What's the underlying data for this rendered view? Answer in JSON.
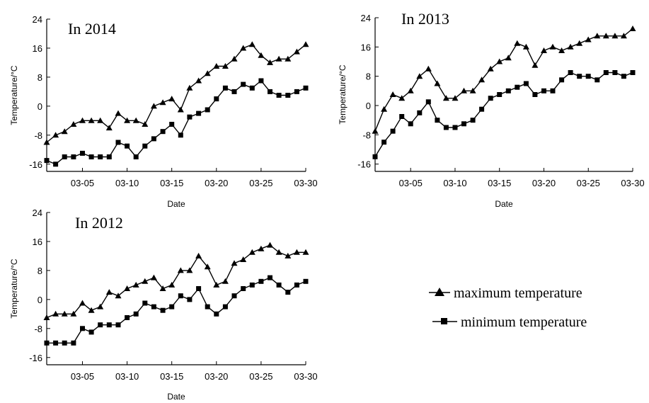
{
  "legend": {
    "max_label": "maximum temperature",
    "min_label": "minimum temperature"
  },
  "chart_data": [
    {
      "type": "line",
      "title": "In 2014",
      "xlabel": "Date",
      "ylabel": "Temperature/°C",
      "ylim": [
        -18,
        24
      ],
      "yticks": [
        -16,
        -8,
        0,
        8,
        16,
        24
      ],
      "xlim": [
        1,
        30
      ],
      "xticks": [
        5,
        10,
        15,
        20,
        25,
        30
      ],
      "xtick_labels": [
        "03-05",
        "03-10",
        "03-15",
        "03-20",
        "03-25",
        "03-30"
      ],
      "x": [
        1,
        2,
        3,
        4,
        5,
        6,
        7,
        8,
        9,
        10,
        11,
        12,
        13,
        14,
        15,
        16,
        17,
        18,
        19,
        20,
        21,
        22,
        23,
        24,
        25,
        26,
        27,
        28,
        29,
        30
      ],
      "series": [
        {
          "name": "maximum temperature",
          "marker": "triangle",
          "values": [
            -10,
            -8,
            -7,
            -5,
            -4,
            -4,
            -4,
            -6,
            -2,
            -4,
            -4,
            -5,
            0,
            1,
            2,
            -1,
            5,
            7,
            9,
            11,
            11,
            13,
            16,
            17,
            14,
            12,
            13,
            13,
            15,
            17
          ]
        },
        {
          "name": "minimum temperature",
          "marker": "square",
          "values": [
            -15,
            -16,
            -14,
            -14,
            -13,
            -14,
            -14,
            -14,
            -10,
            -11,
            -14,
            -11,
            -9,
            -7,
            -5,
            -8,
            -3,
            -2,
            -1,
            2,
            5,
            4,
            6,
            5,
            7,
            4,
            3,
            3,
            4,
            5
          ]
        }
      ]
    },
    {
      "type": "line",
      "title": "In 2013",
      "xlabel": "Date",
      "ylabel": "Temperature/°C",
      "ylim": [
        -18,
        24
      ],
      "yticks": [
        -16,
        -8,
        0,
        8,
        16,
        24
      ],
      "xlim": [
        1,
        30
      ],
      "xticks": [
        5,
        10,
        15,
        20,
        25,
        30
      ],
      "xtick_labels": [
        "03-05",
        "03-10",
        "03-15",
        "03-20",
        "03-25",
        "03-30"
      ],
      "x": [
        1,
        2,
        3,
        4,
        5,
        6,
        7,
        8,
        9,
        10,
        11,
        12,
        13,
        14,
        15,
        16,
        17,
        18,
        19,
        20,
        21,
        22,
        23,
        24,
        25,
        26,
        27,
        28,
        29,
        30
      ],
      "series": [
        {
          "name": "maximum temperature",
          "marker": "triangle",
          "values": [
            -7,
            -1,
            3,
            2,
            4,
            8,
            10,
            6,
            2,
            2,
            4,
            4,
            7,
            10,
            12,
            13,
            17,
            16,
            11,
            15,
            16,
            15,
            16,
            17,
            18,
            19,
            19,
            19,
            19,
            21
          ]
        },
        {
          "name": "minimum temperature",
          "marker": "square",
          "values": [
            -14,
            -10,
            -7,
            -3,
            -5,
            -2,
            1,
            -4,
            -6,
            -6,
            -5,
            -4,
            -1,
            2,
            3,
            4,
            5,
            6,
            3,
            4,
            4,
            7,
            9,
            8,
            8,
            7,
            9,
            9,
            8,
            9
          ]
        }
      ]
    },
    {
      "type": "line",
      "title": "In 2012",
      "xlabel": "Date",
      "ylabel": "Temperature/°C",
      "ylim": [
        -18,
        24
      ],
      "yticks": [
        -16,
        -8,
        0,
        8,
        16,
        24
      ],
      "xlim": [
        1,
        30
      ],
      "xticks": [
        5,
        10,
        15,
        20,
        25,
        30
      ],
      "xtick_labels": [
        "03-05",
        "03-10",
        "03-15",
        "03-20",
        "03-25",
        "03-30"
      ],
      "x": [
        1,
        2,
        3,
        4,
        5,
        6,
        7,
        8,
        9,
        10,
        11,
        12,
        13,
        14,
        15,
        16,
        17,
        18,
        19,
        20,
        21,
        22,
        23,
        24,
        25,
        26,
        27,
        28,
        29,
        30
      ],
      "series": [
        {
          "name": "maximum temperature",
          "marker": "triangle",
          "values": [
            -5,
            -4,
            -4,
            -4,
            -1,
            -3,
            -2,
            2,
            1,
            3,
            4,
            5,
            6,
            3,
            4,
            8,
            8,
            12,
            9,
            4,
            5,
            10,
            11,
            13,
            14,
            15,
            13,
            12,
            13,
            13
          ]
        },
        {
          "name": "minimum temperature",
          "marker": "square",
          "values": [
            -12,
            -12,
            -12,
            -12,
            -8,
            -9,
            -7,
            -7,
            -7,
            -5,
            -4,
            -1,
            -2,
            -3,
            -2,
            1,
            0,
            3,
            -2,
            -4,
            -2,
            1,
            3,
            4,
            5,
            6,
            4,
            2,
            4,
            5
          ]
        }
      ]
    }
  ]
}
